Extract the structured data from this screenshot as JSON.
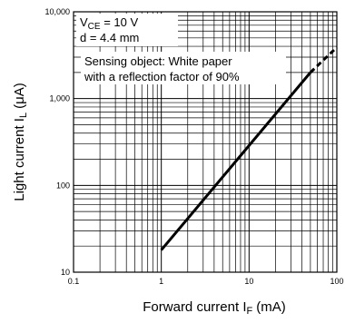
{
  "chart_data": {
    "type": "line",
    "x_scale": "log",
    "y_scale": "log",
    "xlim": [
      0.1,
      100
    ],
    "ylim": [
      10,
      10000
    ],
    "grid": true,
    "xlabel": "Forward current",
    "xlabel_symbol": "I",
    "xlabel_sub": "F",
    "xlabel_unit": "(mA)",
    "ylabel": "Light current",
    "ylabel_symbol": "I",
    "ylabel_sub": "L",
    "ylabel_unit": "(μA)",
    "x_ticks": [
      "0.1",
      "1",
      "10",
      "100"
    ],
    "y_ticks": [
      "10",
      "100",
      "1,000",
      "10,000"
    ],
    "annotations": {
      "vce_prefix": "V",
      "vce_sub": "CE",
      "vce_value": " = 10 V",
      "d_line": "d = 4.4 mm",
      "object_line1": "Sensing object: White paper",
      "object_line2": "with a reflection factor of 90%"
    },
    "series": [
      {
        "solid": {
          "x": [
            1,
            50
          ],
          "y": [
            18,
            2000
          ]
        },
        "dashed": {
          "x": [
            50,
            100
          ],
          "y": [
            2000,
            3900
          ]
        }
      }
    ]
  }
}
